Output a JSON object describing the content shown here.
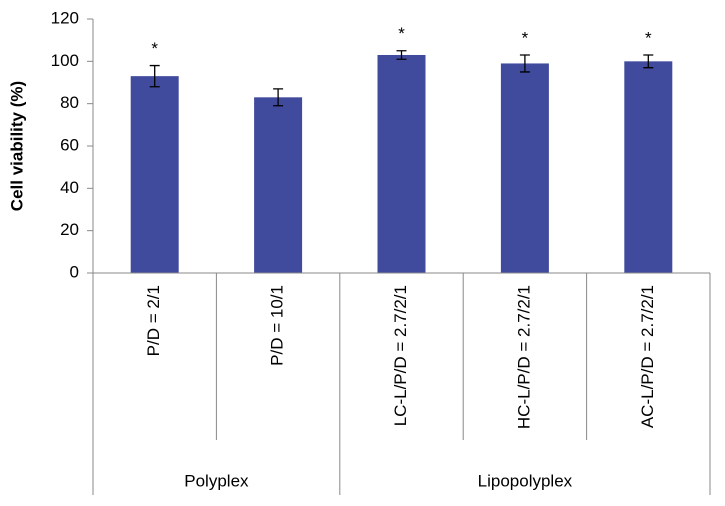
{
  "chart_data": {
    "type": "bar",
    "ylabel": "Cell viability (%)",
    "color": "#414b9e",
    "ylim": [
      0,
      120
    ],
    "yticks": [
      0,
      20,
      40,
      60,
      80,
      100,
      120
    ],
    "groups": [
      {
        "label": "Polyplex",
        "categories": [
          "P/D = 2/1",
          "P/D = 10/1"
        ],
        "values": [
          93,
          83
        ],
        "errors": [
          5,
          4
        ],
        "annotations": [
          "*",
          null
        ]
      },
      {
        "label": "Lipopolyplex",
        "categories": [
          "LC-L/P/D = 2.7/2/1",
          "HC-L/P/D = 2.7/2/1",
          "AC-L/P/D = 2.7/2/1"
        ],
        "values": [
          103,
          99,
          100
        ],
        "errors": [
          2,
          4,
          3
        ],
        "annotations": [
          "*",
          "*",
          "*"
        ]
      }
    ]
  }
}
